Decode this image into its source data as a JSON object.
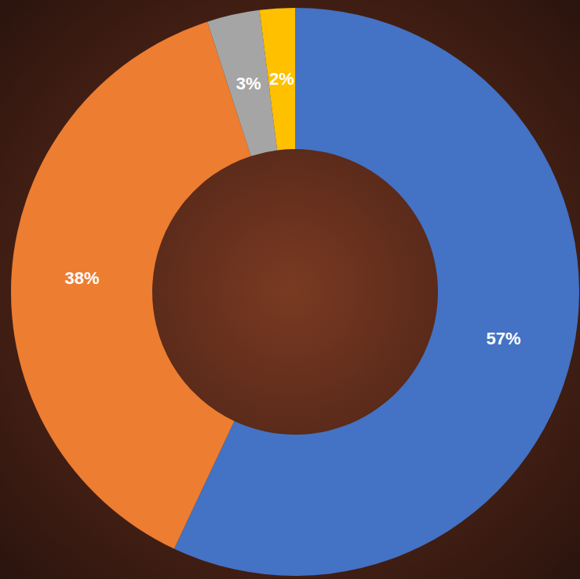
{
  "chart_data": {
    "type": "pie",
    "values": [
      57,
      38,
      3,
      2
    ],
    "value_labels": [
      "57%",
      "38%",
      "3%",
      "2%"
    ],
    "colors": [
      "#4472c4",
      "#ed7d31",
      "#a5a5a5",
      "#ffc000"
    ],
    "data_labels": true
  }
}
